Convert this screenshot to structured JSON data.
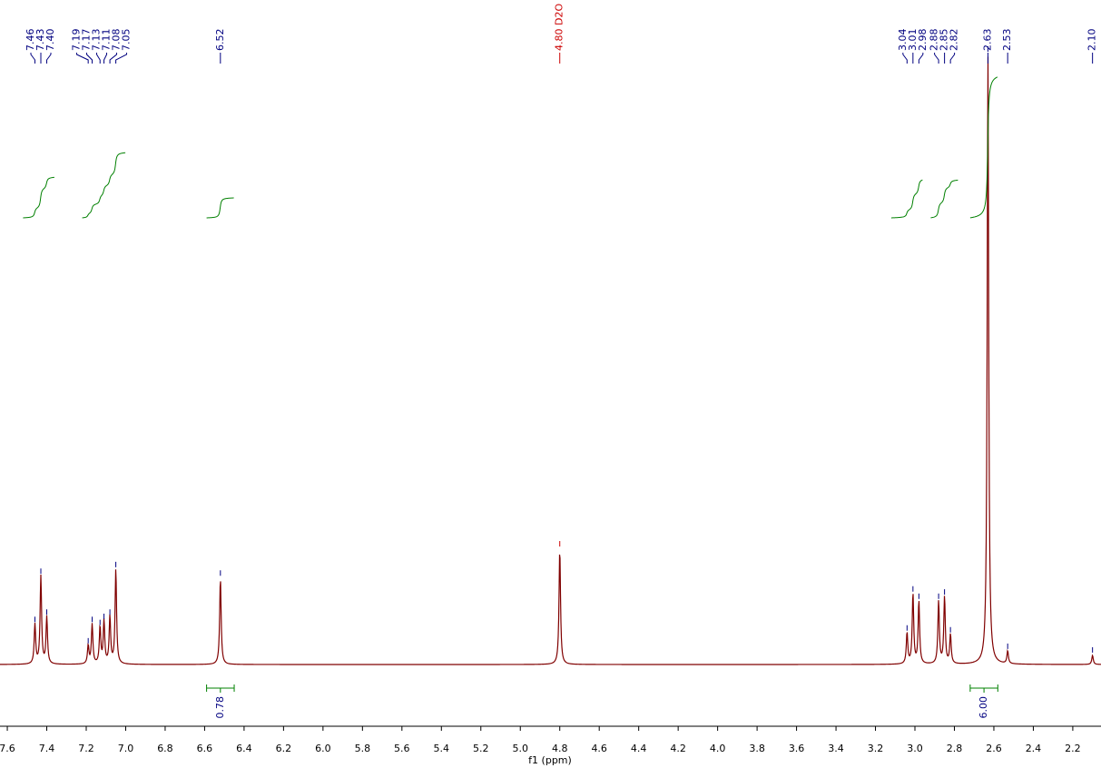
{
  "chart_data": {
    "type": "nmr",
    "x_label": "f1 (ppm)",
    "xlim": [
      7.637,
      2.057
    ],
    "ylim": [
      0,
      100
    ],
    "xticks": [
      7.6,
      7.4,
      7.2,
      {
        "value": 7.0,
        "label": "7.0"
      },
      6.8,
      6.6,
      6.4,
      6.2,
      {
        "value": 6.0,
        "label": "6.0"
      },
      5.8,
      5.6,
      5.4,
      5.2,
      {
        "value": 5.0,
        "label": "5.0"
      },
      4.8,
      4.6,
      4.4,
      4.2,
      {
        "value": 4.0,
        "label": "4.0"
      },
      3.8,
      3.6,
      3.4,
      3.2,
      {
        "value": 3.0,
        "label": "3.0"
      },
      2.8,
      2.6,
      2.4,
      2.2
    ],
    "spectrum_color": "#800000",
    "label_color": "#000080",
    "integral_color": "#008000",
    "peaks": [
      {
        "value": 7.46,
        "label": "7.46",
        "height": 6.5
      },
      {
        "value": 7.43,
        "label": "7.43",
        "height": 14.4
      },
      {
        "value": 7.4,
        "label": "7.40",
        "height": 7.7
      },
      {
        "value": 7.19,
        "label": "7.19",
        "height": 3.0
      },
      {
        "value": 7.17,
        "label": "7.17",
        "height": 6.5
      },
      {
        "value": 7.13,
        "label": "7.13",
        "height": 6.0
      },
      {
        "value": 7.11,
        "label": "7.11",
        "height": 7.0
      },
      {
        "value": 7.08,
        "label": "7.08",
        "height": 7.7
      },
      {
        "value": 7.05,
        "label": "7.05",
        "height": 15.5
      },
      {
        "value": 6.52,
        "label": "6.52",
        "height": 14.1
      },
      {
        "value": 4.8,
        "label": "4.80 D2O",
        "height": 18.9,
        "color": "#cc0000"
      },
      {
        "value": 3.04,
        "label": "3.04",
        "height": 5.1
      },
      {
        "value": 3.01,
        "label": "3.01",
        "height": 11.5
      },
      {
        "value": 2.98,
        "label": "2.98",
        "height": 10.3
      },
      {
        "value": 2.88,
        "label": "2.88",
        "height": 10.3
      },
      {
        "value": 2.85,
        "label": "2.85",
        "height": 11.0
      },
      {
        "value": 2.82,
        "label": "2.82",
        "height": 4.8
      },
      {
        "value": 2.63,
        "label": "2.63",
        "height": 100
      },
      {
        "value": 2.53,
        "label": "2.53",
        "height": 2.1
      },
      {
        "value": 2.1,
        "label": "2.10",
        "height": 1.5
      }
    ],
    "integrals": [
      {
        "from": 7.52,
        "to": 7.36
      },
      {
        "from": 7.22,
        "to": 7.0
      },
      {
        "from": 6.59,
        "to": 6.45,
        "label": "0.78"
      },
      {
        "from": 3.12,
        "to": 2.96
      },
      {
        "from": 2.92,
        "to": 2.78
      },
      {
        "from": 2.72,
        "to": 2.58,
        "label": "6.00"
      }
    ]
  }
}
